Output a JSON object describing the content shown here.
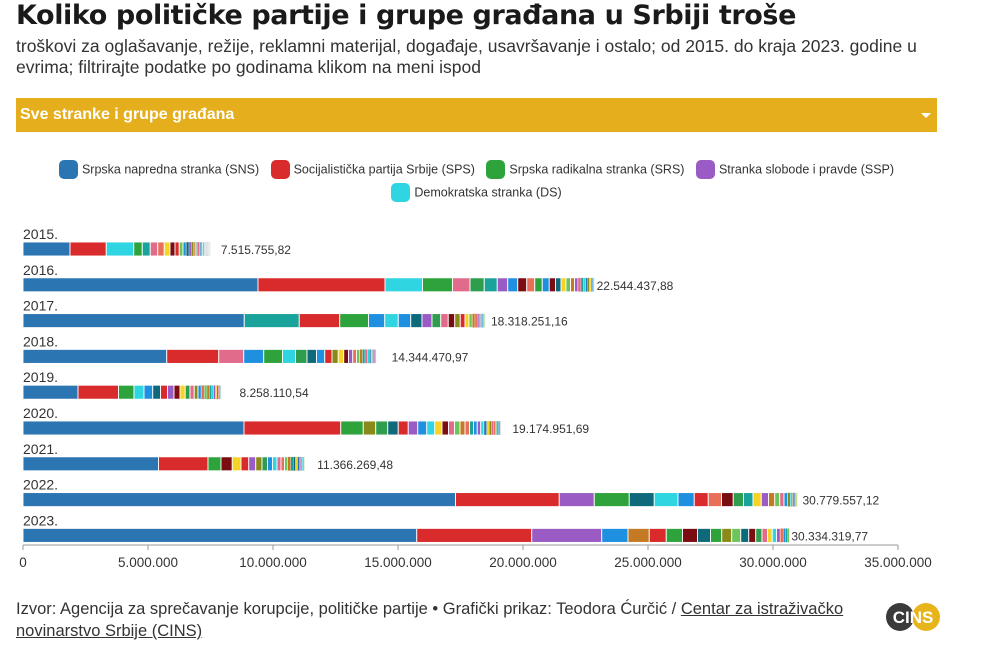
{
  "header": {
    "title": "Koliko političke partije i grupe građana u Srbiji troše",
    "subtitle": "troškovi za oglašavanje, režije, reklamni materijal, događaje, usavršavanje i ostalo; od 2015. do kraja 2023. godine u evrima; filtrirajte podatke po godinama klikom na meni ispod"
  },
  "filter": {
    "selected": "Sve stranke i grupe građana"
  },
  "legend": [
    {
      "label": "Srpska napredna stranka (SNS)",
      "color": "#2c75b3"
    },
    {
      "label": "Socijalistička partija Srbije (SPS)",
      "color": "#d92b2b"
    },
    {
      "label": "Srpska radikalna stranka (SRS)",
      "color": "#2ea33b"
    },
    {
      "label": "Stranka slobode i pravde (SSP)",
      "color": "#9a5cc4"
    },
    {
      "label": "Demokratska stranka (DS)",
      "color": "#2fd5e0"
    }
  ],
  "chart_data": {
    "type": "bar",
    "orientation": "horizontal",
    "stacked": true,
    "categories": [
      "2015.",
      "2016.",
      "2017.",
      "2018.",
      "2019.",
      "2020.",
      "2021.",
      "2022.",
      "2023."
    ],
    "totals": [
      7515755.82,
      22544437.88,
      18318251.16,
      14344470.97,
      8258110.54,
      19174951.69,
      11366269.48,
      30779557.12,
      30334319.77
    ],
    "total_labels": [
      "7.515.755,82",
      "22.544.437,88",
      "18.318.251,16",
      "14.344.470,97",
      "8.258.110,54",
      "19.174.951,69",
      "11.366.269,48",
      "30.779.557,12",
      "30.334.319,77"
    ],
    "xlim": [
      0,
      35000000
    ],
    "xticks": [
      0,
      5000000,
      10000000,
      15000000,
      20000000,
      25000000,
      30000000,
      35000000
    ],
    "xtick_labels": [
      "0",
      "5.000.000",
      "10.000.000",
      "15.000.000",
      "20.000.000",
      "25.000.000",
      "30.000.000",
      "35.000.000"
    ],
    "segment_colors": {
      "SNS": "#2c75b3",
      "SPS": "#d92b2b",
      "SRS": "#2ea33b",
      "SSP": "#9a5cc4",
      "DS": "#2fd5e0",
      "pink": "#e06b8a",
      "blue2": "#1f8fe0",
      "teal": "#1aa39a",
      "olive": "#8a8a1a",
      "maroon": "#7a0c12",
      "orange": "#c47a24",
      "darkteal": "#0e6a7a",
      "yellow": "#f5d327",
      "lightgreen": "#6cc45a",
      "salmon": "#e8705a",
      "green2": "#2e9e4e"
    },
    "segments": [
      [
        {
          "c": "SNS",
          "v": 1880000
        },
        {
          "c": "SPS",
          "v": 1450000
        },
        {
          "c": "DS",
          "v": 1100000
        },
        {
          "c": "SRS",
          "v": 340000
        },
        {
          "c": "teal",
          "v": 320000
        },
        {
          "c": "pink",
          "v": 300000
        },
        {
          "c": "salmon",
          "v": 260000
        },
        {
          "c": "yellow",
          "v": 230000
        },
        {
          "c": "maroon",
          "v": 200000
        },
        {
          "c": "SPS",
          "v": 170000
        },
        {
          "c": "lightgreen",
          "v": 150000
        },
        {
          "c": "blue2",
          "v": 130000
        },
        {
          "c": "darkteal",
          "v": 110000
        },
        {
          "c": "SSP",
          "v": 90000
        },
        {
          "c": "olive",
          "v": 80000
        },
        {
          "c": "orange",
          "v": 70000
        },
        {
          "c": "yellow",
          "v": 60000
        },
        {
          "c": "blue2",
          "v": 55000
        },
        {
          "c": "pink",
          "v": 50000
        },
        {
          "c": "lightgreen",
          "v": 45000
        },
        {
          "c": "SNS",
          "v": 40000
        },
        {
          "c": "SSP",
          "v": 35000
        },
        {
          "c": "DS",
          "v": 30000
        },
        {
          "c": "olive",
          "v": 30000
        },
        {
          "c": "salmon",
          "v": 25000
        },
        {
          "c": "teal",
          "v": 25000
        },
        {
          "c": "SRS",
          "v": 20000
        },
        {
          "c": "yellow",
          "v": 19000
        },
        {
          "c": "maroon",
          "v": 18000
        },
        {
          "c": "blue2",
          "v": 17000
        },
        {
          "c": "pink",
          "v": 16000
        },
        {
          "c": "darkteal",
          "v": 15000
        },
        {
          "c": "lightgreen",
          "v": 14000
        },
        {
          "c": "orange",
          "v": 13000
        },
        {
          "c": "SSP",
          "v": 12000
        },
        {
          "c": "DS",
          "v": 10000
        },
        {
          "c": "yellow",
          "v": 9000
        },
        {
          "c": "SNS",
          "v": 8000
        },
        {
          "c": "teal",
          "v": 8000
        },
        {
          "c": "salmon",
          "v": 6000
        },
        {
          "c": "olive",
          "v": 5000
        },
        {
          "c": "pink",
          "v": 4000
        },
        {
          "c": "blue2",
          "v": 3000
        },
        {
          "c": "lightgreen",
          "v": 2755.82
        }
      ],
      [
        {
          "c": "SNS",
          "v": 9400000
        },
        {
          "c": "SPS",
          "v": 5080000
        },
        {
          "c": "DS",
          "v": 1500000
        },
        {
          "c": "SRS",
          "v": 1200000
        },
        {
          "c": "pink",
          "v": 700000
        },
        {
          "c": "green2",
          "v": 570000
        },
        {
          "c": "teal",
          "v": 520000
        },
        {
          "c": "SSP",
          "v": 420000
        },
        {
          "c": "blue2",
          "v": 400000
        },
        {
          "c": "maroon",
          "v": 360000
        },
        {
          "c": "salmon",
          "v": 320000
        },
        {
          "c": "SRS",
          "v": 300000
        },
        {
          "c": "blue2",
          "v": 280000
        },
        {
          "c": "maroon",
          "v": 250000
        },
        {
          "c": "darkteal",
          "v": 220000
        },
        {
          "c": "yellow",
          "v": 200000
        },
        {
          "c": "lightgreen",
          "v": 180000
        },
        {
          "c": "orange",
          "v": 160000
        },
        {
          "c": "SSP",
          "v": 140000
        },
        {
          "c": "pink",
          "v": 120000
        },
        {
          "c": "teal",
          "v": 100000
        },
        {
          "c": "DS",
          "v": 90000
        },
        {
          "c": "SNS",
          "v": 80000
        },
        {
          "c": "olive",
          "v": 70000
        },
        {
          "c": "yellow",
          "v": 60000
        },
        {
          "c": "salmon",
          "v": 50000
        },
        {
          "c": "blue2",
          "v": 40000
        },
        {
          "c": "lightgreen",
          "v": 34437.88
        }
      ],
      [
        {
          "c": "SNS",
          "v": 8850000
        },
        {
          "c": "teal",
          "v": 2200000
        },
        {
          "c": "SPS",
          "v": 1620000
        },
        {
          "c": "SRS",
          "v": 1150000
        },
        {
          "c": "blue2",
          "v": 650000
        },
        {
          "c": "DS",
          "v": 540000
        },
        {
          "c": "blue2",
          "v": 500000
        },
        {
          "c": "darkteal",
          "v": 450000
        },
        {
          "c": "SSP",
          "v": 400000
        },
        {
          "c": "green2",
          "v": 350000
        },
        {
          "c": "pink",
          "v": 300000
        },
        {
          "c": "maroon",
          "v": 260000
        },
        {
          "c": "olive",
          "v": 220000
        },
        {
          "c": "SPS",
          "v": 190000
        },
        {
          "c": "yellow",
          "v": 160000
        },
        {
          "c": "lightgreen",
          "v": 130000
        },
        {
          "c": "orange",
          "v": 110000
        },
        {
          "c": "salmon",
          "v": 90000
        },
        {
          "c": "SSP",
          "v": 70000
        },
        {
          "c": "DS",
          "v": 60000
        },
        {
          "c": "pink",
          "v": 50000
        },
        {
          "c": "blue2",
          "v": 40000
        },
        {
          "c": "teal",
          "v": 30000
        },
        {
          "c": "SRS",
          "v": 20000
        },
        {
          "c": "lightgreen",
          "v": 28251.16
        }
      ],
      [
        {
          "c": "SNS",
          "v": 5750000
        },
        {
          "c": "SPS",
          "v": 2080000
        },
        {
          "c": "pink",
          "v": 1000000
        },
        {
          "c": "blue2",
          "v": 800000
        },
        {
          "c": "SRS",
          "v": 750000
        },
        {
          "c": "DS",
          "v": 520000
        },
        {
          "c": "green2",
          "v": 460000
        },
        {
          "c": "darkteal",
          "v": 380000
        },
        {
          "c": "blue2",
          "v": 330000
        },
        {
          "c": "SPS",
          "v": 290000
        },
        {
          "c": "olive",
          "v": 250000
        },
        {
          "c": "yellow",
          "v": 220000
        },
        {
          "c": "maroon",
          "v": 190000
        },
        {
          "c": "SSP",
          "v": 170000
        },
        {
          "c": "salmon",
          "v": 150000
        },
        {
          "c": "lightgreen",
          "v": 130000
        },
        {
          "c": "orange",
          "v": 110000
        },
        {
          "c": "teal",
          "v": 100000
        },
        {
          "c": "pink",
          "v": 90000
        },
        {
          "c": "DS",
          "v": 80000
        },
        {
          "c": "SNS",
          "v": 70000
        },
        {
          "c": "yellow",
          "v": 60000
        },
        {
          "c": "blue2",
          "v": 50000
        },
        {
          "c": "SSP",
          "v": 40000
        },
        {
          "c": "salmon",
          "v": 30000
        },
        {
          "c": "lightgreen",
          "v": 24470.97
        }
      ],
      [
        {
          "c": "SNS",
          "v": 2200000
        },
        {
          "c": "SPS",
          "v": 1620000
        },
        {
          "c": "SRS",
          "v": 620000
        },
        {
          "c": "DS",
          "v": 400000
        },
        {
          "c": "blue2",
          "v": 350000
        },
        {
          "c": "darkteal",
          "v": 310000
        },
        {
          "c": "SPS",
          "v": 280000
        },
        {
          "c": "SSP",
          "v": 260000
        },
        {
          "c": "maroon",
          "v": 240000
        },
        {
          "c": "yellow",
          "v": 210000
        },
        {
          "c": "green2",
          "v": 190000
        },
        {
          "c": "pink",
          "v": 170000
        },
        {
          "c": "olive",
          "v": 150000
        },
        {
          "c": "blue2",
          "v": 130000
        },
        {
          "c": "salmon",
          "v": 120000
        },
        {
          "c": "lightgreen",
          "v": 110000
        },
        {
          "c": "orange",
          "v": 100000
        },
        {
          "c": "teal",
          "v": 90000
        },
        {
          "c": "DS",
          "v": 80000
        },
        {
          "c": "SSP",
          "v": 70000
        },
        {
          "c": "yellow",
          "v": 60000
        },
        {
          "c": "SNS",
          "v": 50000
        },
        {
          "c": "pink",
          "v": 40000
        },
        {
          "c": "maroon",
          "v": 30000
        },
        {
          "c": "blue2",
          "v": 20000
        },
        {
          "c": "lightgreen",
          "v": 18110.54
        }
      ],
      [
        {
          "c": "SNS",
          "v": 8840000
        },
        {
          "c": "SPS",
          "v": 3870000
        },
        {
          "c": "SRS",
          "v": 900000
        },
        {
          "c": "olive",
          "v": 500000
        },
        {
          "c": "green2",
          "v": 480000
        },
        {
          "c": "darkteal",
          "v": 420000
        },
        {
          "c": "SPS",
          "v": 400000
        },
        {
          "c": "SSP",
          "v": 380000
        },
        {
          "c": "blue2",
          "v": 360000
        },
        {
          "c": "DS",
          "v": 320000
        },
        {
          "c": "yellow",
          "v": 290000
        },
        {
          "c": "maroon",
          "v": 260000
        },
        {
          "c": "pink",
          "v": 240000
        },
        {
          "c": "lightgreen",
          "v": 220000
        },
        {
          "c": "orange",
          "v": 200000
        },
        {
          "c": "salmon",
          "v": 180000
        },
        {
          "c": "teal",
          "v": 160000
        },
        {
          "c": "blue2",
          "v": 150000
        },
        {
          "c": "SSP",
          "v": 140000
        },
        {
          "c": "DS",
          "v": 130000
        },
        {
          "c": "SNS",
          "v": 110000
        },
        {
          "c": "yellow",
          "v": 100000
        },
        {
          "c": "olive",
          "v": 90000
        },
        {
          "c": "pink",
          "v": 80000
        },
        {
          "c": "salmon",
          "v": 70000
        },
        {
          "c": "lightgreen",
          "v": 60000
        },
        {
          "c": "teal",
          "v": 50000
        },
        {
          "c": "blue2",
          "v": 40000
        },
        {
          "c": "maroon",
          "v": 30000
        },
        {
          "c": "orange",
          "v": 20000
        },
        {
          "c": "SSP",
          "v": 15000
        },
        {
          "c": "lightgreen",
          "v": 9951.69
        }
      ],
      [
        {
          "c": "SNS",
          "v": 5420000
        },
        {
          "c": "SPS",
          "v": 1980000
        },
        {
          "c": "SRS",
          "v": 520000
        },
        {
          "c": "maroon",
          "v": 450000
        },
        {
          "c": "yellow",
          "v": 350000
        },
        {
          "c": "SPS",
          "v": 310000
        },
        {
          "c": "SSP",
          "v": 280000
        },
        {
          "c": "olive",
          "v": 250000
        },
        {
          "c": "green2",
          "v": 220000
        },
        {
          "c": "blue2",
          "v": 200000
        },
        {
          "c": "DS",
          "v": 180000
        },
        {
          "c": "pink",
          "v": 160000
        },
        {
          "c": "salmon",
          "v": 140000
        },
        {
          "c": "lightgreen",
          "v": 130000
        },
        {
          "c": "orange",
          "v": 120000
        },
        {
          "c": "teal",
          "v": 100000
        },
        {
          "c": "darkteal",
          "v": 90000
        },
        {
          "c": "yellow",
          "v": 80000
        },
        {
          "c": "SNS",
          "v": 70000
        },
        {
          "c": "SSP",
          "v": 60000
        },
        {
          "c": "pink",
          "v": 50000
        },
        {
          "c": "DS",
          "v": 40000
        },
        {
          "c": "blue2",
          "v": 30000
        },
        {
          "c": "maroon",
          "v": 20000
        },
        {
          "c": "lightgreen",
          "v": 16269.48
        }
      ],
      [
        {
          "c": "SNS",
          "v": 17300000
        },
        {
          "c": "SPS",
          "v": 4150000
        },
        {
          "c": "SSP",
          "v": 1400000
        },
        {
          "c": "SRS",
          "v": 1400000
        },
        {
          "c": "darkteal",
          "v": 1000000
        },
        {
          "c": "DS",
          "v": 950000
        },
        {
          "c": "blue2",
          "v": 650000
        },
        {
          "c": "SPS",
          "v": 560000
        },
        {
          "c": "salmon",
          "v": 530000
        },
        {
          "c": "maroon",
          "v": 470000
        },
        {
          "c": "green2",
          "v": 410000
        },
        {
          "c": "teal",
          "v": 380000
        },
        {
          "c": "yellow",
          "v": 330000
        },
        {
          "c": "SSP",
          "v": 290000
        },
        {
          "c": "orange",
          "v": 250000
        },
        {
          "c": "lightgreen",
          "v": 200000
        },
        {
          "c": "pink",
          "v": 170000
        },
        {
          "c": "blue2",
          "v": 140000
        },
        {
          "c": "olive",
          "v": 110000
        },
        {
          "c": "DS",
          "v": 90000
        },
        {
          "c": "salmon",
          "v": 70000
        },
        {
          "c": "SNS",
          "v": 50000
        },
        {
          "c": "yellow",
          "v": 40000
        },
        {
          "c": "lightgreen",
          "v": 29557.12
        }
      ],
      [
        {
          "c": "SNS",
          "v": 15750000
        },
        {
          "c": "SPS",
          "v": 4600000
        },
        {
          "c": "SSP",
          "v": 2800000
        },
        {
          "c": "blue2",
          "v": 1050000
        },
        {
          "c": "orange",
          "v": 850000
        },
        {
          "c": "SPS",
          "v": 680000
        },
        {
          "c": "SRS",
          "v": 650000
        },
        {
          "c": "maroon",
          "v": 600000
        },
        {
          "c": "darkteal",
          "v": 520000
        },
        {
          "c": "SRS",
          "v": 450000
        },
        {
          "c": "olive",
          "v": 400000
        },
        {
          "c": "lightgreen",
          "v": 360000
        },
        {
          "c": "darkteal",
          "v": 320000
        },
        {
          "c": "maroon",
          "v": 280000
        },
        {
          "c": "green2",
          "v": 250000
        },
        {
          "c": "pink",
          "v": 220000
        },
        {
          "c": "yellow",
          "v": 190000
        },
        {
          "c": "DS",
          "v": 170000
        },
        {
          "c": "SSP",
          "v": 150000
        },
        {
          "c": "salmon",
          "v": 120000
        },
        {
          "c": "blue2",
          "v": 100000
        },
        {
          "c": "teal",
          "v": 80000
        },
        {
          "c": "lightgreen",
          "v": 54319.77
        }
      ]
    ]
  },
  "footer": {
    "source_text": "Izvor: Agencija za sprečavanje korupcije, političke partije • Grafički prikaz: Teodora Ćurčić / ",
    "source_link": "Centar za istraživačko novinarstvo Srbije (CINS)",
    "logo_text": "CINS"
  }
}
